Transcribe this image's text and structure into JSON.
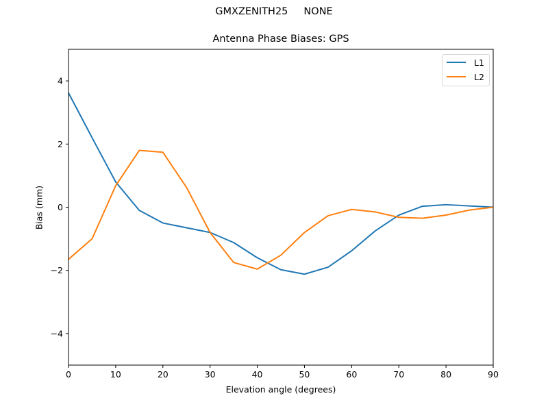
{
  "figure": {
    "suptitle": "GMXZENITH25     NONE",
    "title": "Antenna Phase Biases: GPS",
    "xlabel": "Elevation angle (degrees)",
    "ylabel": "Bias (mm)"
  },
  "legend": {
    "items": [
      {
        "label": "L1",
        "color": "#1f77b4"
      },
      {
        "label": "L2",
        "color": "#ff7f0e"
      }
    ]
  },
  "chart_data": {
    "type": "line",
    "title": "Antenna Phase Biases: GPS",
    "suptitle": "GMXZENITH25     NONE",
    "xlabel": "Elevation angle (degrees)",
    "ylabel": "Bias (mm)",
    "xlim": [
      0,
      90
    ],
    "ylim": [
      -5,
      5
    ],
    "xticks": [
      0,
      10,
      20,
      30,
      40,
      50,
      60,
      70,
      80,
      90
    ],
    "yticks": [
      -4,
      -2,
      0,
      2,
      4
    ],
    "grid": false,
    "legend_position": "upper right",
    "x": [
      0,
      5,
      10,
      15,
      20,
      25,
      30,
      35,
      40,
      45,
      50,
      55,
      60,
      65,
      70,
      75,
      80,
      85,
      90
    ],
    "series": [
      {
        "name": "L1",
        "color": "#1f77b4",
        "values": [
          3.62,
          2.2,
          0.8,
          -0.1,
          -0.5,
          -0.65,
          -0.8,
          -1.12,
          -1.6,
          -1.98,
          -2.12,
          -1.9,
          -1.38,
          -0.75,
          -0.25,
          0.03,
          0.08,
          0.04,
          0.0
        ]
      },
      {
        "name": "L2",
        "color": "#ff7f0e",
        "values": [
          -1.65,
          -1.0,
          0.68,
          1.8,
          1.74,
          0.63,
          -0.8,
          -1.75,
          -1.96,
          -1.52,
          -0.8,
          -0.27,
          -0.07,
          -0.15,
          -0.32,
          -0.35,
          -0.25,
          -0.09,
          0.0
        ]
      }
    ]
  }
}
